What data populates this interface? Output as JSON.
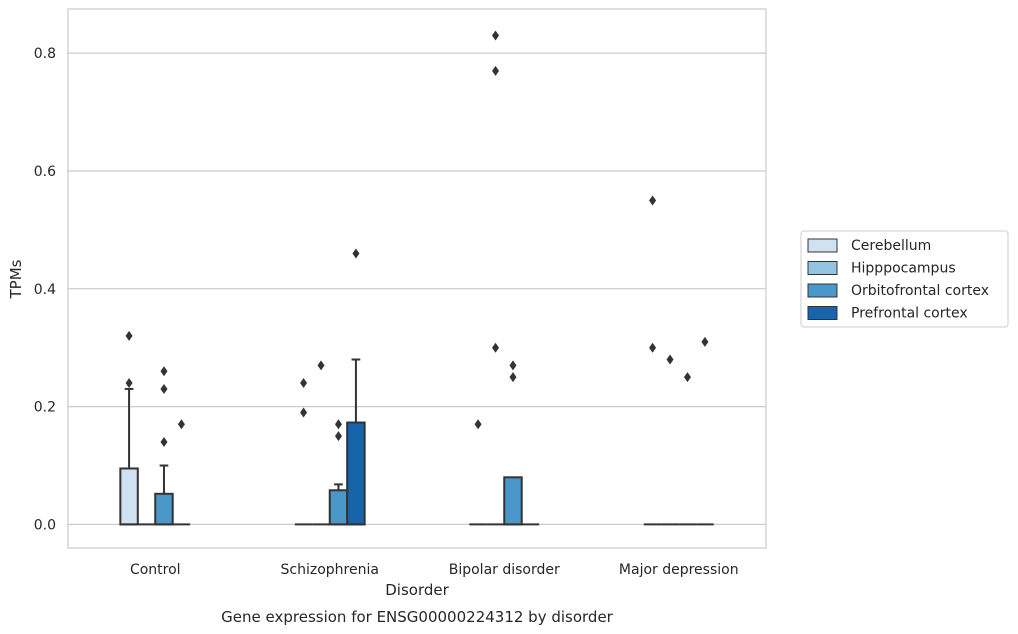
{
  "chart_data": {
    "type": "box",
    "title": "Gene expression for ENSG00000224312 by disorder",
    "xlabel": "Disorder",
    "ylabel": "TPMs",
    "categories": [
      "Control",
      "Schizophrenia",
      "Bipolar disorder",
      "Major depression"
    ],
    "ylim": [
      -0.04,
      0.875
    ],
    "yticks": [
      0.0,
      0.2,
      0.4,
      0.6,
      0.8
    ],
    "ytick_labels": [
      "0.0",
      "0.2",
      "0.4",
      "0.6",
      "0.8"
    ],
    "grid": true,
    "legend_position": "right",
    "series": [
      {
        "name": "Cerebellum",
        "color": "#d0e1f2",
        "boxes": [
          {
            "q1": 0.0,
            "median": 0.0,
            "q3": 0.095,
            "whisker_low": 0.0,
            "whisker_high": 0.23,
            "outliers": [
              0.24,
              0.32
            ]
          },
          {
            "q1": 0.0,
            "median": 0.0,
            "q3": 0.0,
            "whisker_low": 0.0,
            "whisker_high": 0.0,
            "outliers": [
              0.19,
              0.24
            ]
          },
          {
            "q1": 0.0,
            "median": 0.0,
            "q3": 0.0,
            "whisker_low": 0.0,
            "whisker_high": 0.0,
            "outliers": [
              0.17
            ]
          },
          {
            "q1": 0.0,
            "median": 0.0,
            "q3": 0.0,
            "whisker_low": 0.0,
            "whisker_high": 0.0,
            "outliers": [
              0.3,
              0.55
            ]
          }
        ]
      },
      {
        "name": "Hipppocampus",
        "color": "#94c4df",
        "boxes": [
          {
            "q1": 0.0,
            "median": 0.0,
            "q3": 0.0,
            "whisker_low": 0.0,
            "whisker_high": 0.0,
            "outliers": []
          },
          {
            "q1": 0.0,
            "median": 0.0,
            "q3": 0.0,
            "whisker_low": 0.0,
            "whisker_high": 0.0,
            "outliers": [
              0.27
            ]
          },
          {
            "q1": 0.0,
            "median": 0.0,
            "q3": 0.0,
            "whisker_low": 0.0,
            "whisker_high": 0.0,
            "outliers": [
              0.3,
              0.77,
              0.83
            ]
          },
          {
            "q1": 0.0,
            "median": 0.0,
            "q3": 0.0,
            "whisker_low": 0.0,
            "whisker_high": 0.0,
            "outliers": [
              0.28
            ]
          }
        ]
      },
      {
        "name": "Orbitofrontal cortex",
        "color": "#4a98c9",
        "boxes": [
          {
            "q1": 0.0,
            "median": 0.0,
            "q3": 0.052,
            "whisker_low": 0.0,
            "whisker_high": 0.1,
            "outliers": [
              0.14,
              0.23,
              0.26
            ]
          },
          {
            "q1": 0.0,
            "median": 0.0,
            "q3": 0.058,
            "whisker_low": 0.0,
            "whisker_high": 0.068,
            "outliers": [
              0.15,
              0.17
            ]
          },
          {
            "q1": 0.0,
            "median": 0.0,
            "q3": 0.08,
            "whisker_low": 0.0,
            "whisker_high": 0.08,
            "outliers": [
              0.25,
              0.27
            ]
          },
          {
            "q1": 0.0,
            "median": 0.0,
            "q3": 0.0,
            "whisker_low": 0.0,
            "whisker_high": 0.0,
            "outliers": [
              0.25
            ]
          }
        ]
      },
      {
        "name": "Prefrontal cortex",
        "color": "#1764ab",
        "boxes": [
          {
            "q1": 0.0,
            "median": 0.0,
            "q3": 0.0,
            "whisker_low": 0.0,
            "whisker_high": 0.0,
            "outliers": [
              0.17
            ]
          },
          {
            "q1": 0.0,
            "median": 0.0,
            "q3": 0.173,
            "whisker_low": 0.0,
            "whisker_high": 0.28,
            "outliers": [
              0.46
            ]
          },
          {
            "q1": 0.0,
            "median": 0.0,
            "q3": 0.0,
            "whisker_low": 0.0,
            "whisker_high": 0.0,
            "outliers": []
          },
          {
            "q1": 0.0,
            "median": 0.0,
            "q3": 0.0,
            "whisker_low": 0.0,
            "whisker_high": 0.0,
            "outliers": [
              0.31
            ]
          }
        ]
      }
    ]
  }
}
